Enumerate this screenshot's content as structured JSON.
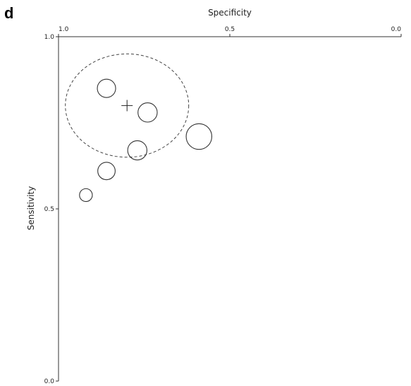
{
  "panel_label": "d",
  "chart_data": {
    "type": "scatter",
    "title": "",
    "xlabel": "Specificity",
    "ylabel": "Sensitivity",
    "xlim": [
      1.0,
      0.0
    ],
    "ylim": [
      0.0,
      1.0
    ],
    "x_ticks": [
      {
        "value": 1.0,
        "label": "1.0"
      },
      {
        "value": 0.5,
        "label": "0.5"
      },
      {
        "value": 0.0,
        "label": "0.0"
      }
    ],
    "y_ticks": [
      {
        "value": 1.0,
        "label": "1.0"
      },
      {
        "value": 0.5,
        "label": "0.5"
      },
      {
        "value": 0.0,
        "label": "0.0"
      }
    ],
    "x_axis_position": "top",
    "grid": false,
    "studies": [
      {
        "specificity": 0.86,
        "sensitivity": 0.85,
        "relative_size": 1.0
      },
      {
        "specificity": 0.74,
        "sensitivity": 0.78,
        "relative_size": 1.05
      },
      {
        "specificity": 0.77,
        "sensitivity": 0.67,
        "relative_size": 1.05
      },
      {
        "specificity": 0.59,
        "sensitivity": 0.71,
        "relative_size": 1.4
      },
      {
        "specificity": 0.86,
        "sensitivity": 0.61,
        "relative_size": 0.95
      },
      {
        "specificity": 0.92,
        "sensitivity": 0.54,
        "relative_size": 0.7
      }
    ],
    "summary_point": {
      "specificity": 0.8,
      "sensitivity": 0.8
    },
    "confidence_region": {
      "center_specificity": 0.8,
      "center_sensitivity": 0.8,
      "half_width_specificity": 0.18,
      "half_height_sensitivity": 0.15
    }
  }
}
